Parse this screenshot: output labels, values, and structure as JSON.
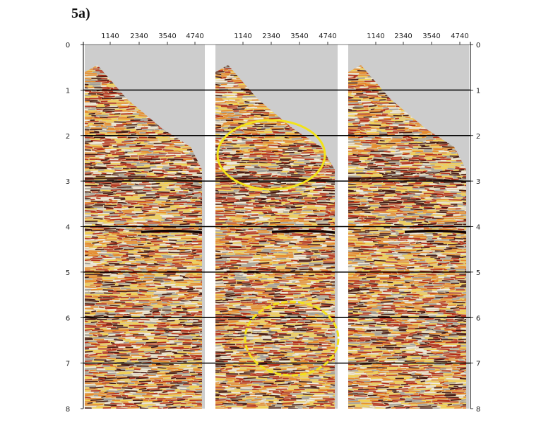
{
  "figure_label": "5a)",
  "offset_ticks": [
    "1140",
    "2340",
    "3540",
    "4740"
  ],
  "time_ticks": [
    "0",
    "1",
    "2",
    "3",
    "4",
    "5",
    "6",
    "7",
    "8"
  ],
  "panels": [
    {
      "id": "left",
      "highlights": []
    },
    {
      "id": "middle",
      "highlights": [
        "upper-ellipse",
        "lower-ellipse"
      ]
    },
    {
      "id": "right",
      "highlights": []
    }
  ],
  "colors": {
    "background_mute": "#cdcdcd",
    "seismic_dark": "#3a0a06",
    "seismic_red": "#b0220f",
    "seismic_orange": "#e8841e",
    "seismic_yellow": "#f5d24a",
    "seismic_gray": "#9a9a9a",
    "highlight": "#f2e21a",
    "timeline": "#000000"
  }
}
